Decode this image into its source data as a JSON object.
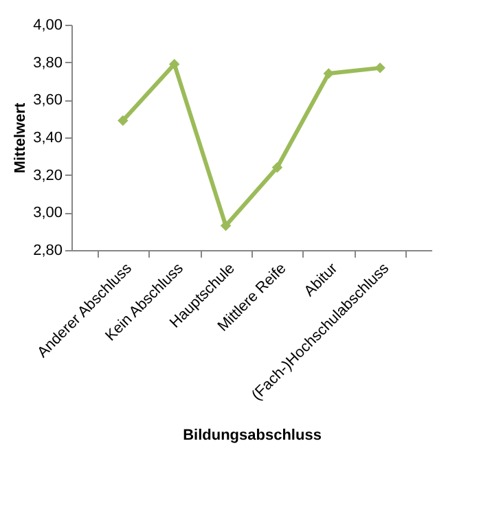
{
  "chart_data": {
    "type": "line",
    "xlabel": "Bildungsabschluss",
    "ylabel": "Mittelwert",
    "categories": [
      "Anderer Abschluss",
      "Kein Abschluss",
      "Hauptschule",
      "Mittlere Reife",
      "Abitur",
      "(Fach-)Hochschulabschluss"
    ],
    "series": [
      {
        "color": "#9bbb59",
        "values": [
          3.49,
          3.79,
          2.93,
          3.24,
          3.74,
          3.77
        ]
      }
    ],
    "ylim": [
      2.8,
      4.0
    ],
    "yticks": [
      {
        "value": 2.8,
        "label": "2,80"
      },
      {
        "value": 3.0,
        "label": "3,00"
      },
      {
        "value": 3.2,
        "label": "3,20"
      },
      {
        "value": 3.4,
        "label": "3,40"
      },
      {
        "value": 3.6,
        "label": "3,60"
      },
      {
        "value": 3.8,
        "label": "3,80"
      },
      {
        "value": 4.0,
        "label": "4,00"
      }
    ],
    "grid": false,
    "legend": false,
    "marker": "diamond",
    "line_style": "solid"
  }
}
